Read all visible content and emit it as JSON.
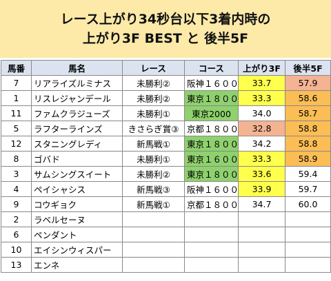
{
  "header": {
    "title": [
      "レース上がり34秒台以下3着内時の",
      "上がり3F BEST と 後半5F"
    ]
  },
  "table": {
    "columns": [
      "馬番",
      "馬名",
      "レース",
      "コース",
      "上がり3F",
      "後半5F"
    ],
    "rows": [
      {
        "cells": [
          "7",
          "リアライズルミナス",
          "未勝利②",
          "阪神１６００",
          "33.7",
          "57.9"
        ],
        "fills": [
          null,
          null,
          null,
          null,
          "#ffff4d",
          "#f4b393"
        ]
      },
      {
        "cells": [
          "1",
          "リスレジャンデール",
          "未勝利②",
          "東京１８００",
          "33.3",
          "58.6"
        ],
        "fills": [
          null,
          null,
          null,
          "#8fd16e",
          "#ffff4d",
          "#fbbd55"
        ]
      },
      {
        "cells": [
          "11",
          "ファムクラジューズ",
          "未勝利①",
          "東京2000",
          "34.0",
          "58.7"
        ],
        "fills": [
          null,
          null,
          null,
          "#8fd16e",
          null,
          "#fbbd55"
        ]
      },
      {
        "cells": [
          "5",
          "ラフターラインズ",
          "きさらぎ賞③",
          "京都１８００",
          "32.8",
          "58.8"
        ],
        "fills": [
          null,
          null,
          null,
          null,
          "#f4b393",
          "#fbbd55"
        ]
      },
      {
        "cells": [
          "12",
          "スタニングレディ",
          "新馬戦①",
          "東京１８００",
          "34.2",
          "58.8"
        ],
        "fills": [
          null,
          null,
          null,
          "#8fd16e",
          null,
          "#fbbd55"
        ]
      },
      {
        "cells": [
          "8",
          "ゴバド",
          "未勝利①",
          "東京１６００",
          "33.3",
          "58.9"
        ],
        "fills": [
          null,
          null,
          null,
          "#8fd16e",
          "#ffff4d",
          "#fbbd55"
        ]
      },
      {
        "cells": [
          "3",
          "サムシングスイート",
          "未勝利②",
          "東京１８００",
          "33.6",
          "59.4"
        ],
        "fills": [
          null,
          null,
          null,
          "#8fd16e",
          "#ffff4d",
          null
        ]
      },
      {
        "cells": [
          "4",
          "ペイシャシス",
          "新馬戦③",
          "阪神１６００",
          "33.9",
          "59.7"
        ],
        "fills": [
          null,
          null,
          null,
          null,
          "#ffff4d",
          null
        ]
      },
      {
        "cells": [
          "9",
          "コウギョク",
          "新馬戦①",
          "京都１８００",
          "34.7",
          "60.0"
        ],
        "fills": [
          null,
          null,
          null,
          null,
          null,
          null
        ]
      },
      {
        "cells": [
          "2",
          "ラベルセーヌ"
        ]
      },
      {
        "cells": [
          "6",
          "ペンダント"
        ]
      },
      {
        "cells": [
          "10",
          "エイシンウィスパー"
        ]
      },
      {
        "cells": [
          "13",
          "エンネ"
        ]
      }
    ]
  }
}
